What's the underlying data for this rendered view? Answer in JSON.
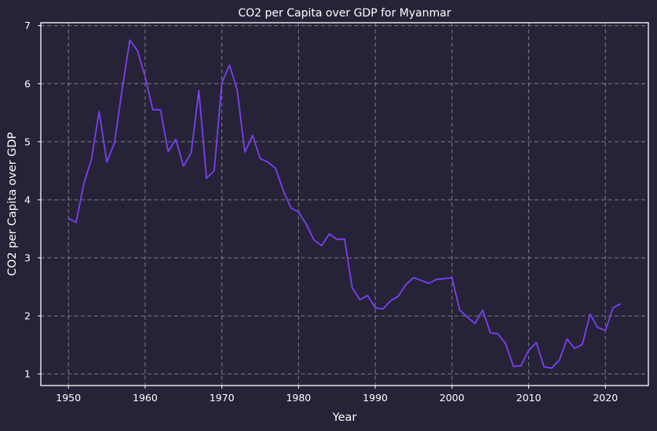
{
  "chart_data": {
    "type": "line",
    "title": "CO2 per Capita over GDP for Myanmar",
    "xlabel": "Year",
    "ylabel": "CO2 per Capita over GDP",
    "xlim": [
      1946.4,
      2025.6
    ],
    "ylim": [
      0.8,
      7.05
    ],
    "xticks": [
      1950,
      1960,
      1970,
      1980,
      1990,
      2000,
      2010,
      2020
    ],
    "yticks": [
      1,
      2,
      3,
      4,
      5,
      6,
      7
    ],
    "grid": true,
    "line_color": "#7b3ff2",
    "background_color": "#262338",
    "series": [
      {
        "x": [
          1950,
          1951,
          1952,
          1953,
          1954,
          1955,
          1956,
          1957,
          1958,
          1959,
          1960,
          1961,
          1962,
          1963,
          1964,
          1965,
          1966,
          1967,
          1968,
          1969,
          1970,
          1971,
          1972,
          1973,
          1974,
          1975,
          1976,
          1977,
          1978,
          1979,
          1980,
          1981,
          1982,
          1983,
          1984,
          1985,
          1986,
          1987,
          1988,
          1989,
          1990,
          1991,
          1992,
          1993,
          1994,
          1995,
          1996,
          1997,
          1998,
          1999,
          2000,
          2001,
          2002,
          2003,
          2004,
          2005,
          2006,
          2007,
          2008,
          2009,
          2010,
          2011,
          2012,
          2013,
          2014,
          2015,
          2016,
          2017,
          2018,
          2019,
          2020,
          2021,
          2022
        ],
        "values": [
          3.68,
          3.61,
          4.27,
          4.7,
          5.52,
          4.65,
          4.98,
          5.9,
          6.75,
          6.57,
          6.12,
          5.55,
          5.55,
          4.83,
          5.04,
          4.58,
          4.81,
          5.88,
          4.37,
          4.5,
          6.02,
          6.32,
          5.89,
          4.82,
          5.11,
          4.71,
          4.65,
          4.54,
          4.16,
          3.86,
          3.79,
          3.58,
          3.31,
          3.21,
          3.41,
          3.32,
          3.32,
          2.48,
          2.28,
          2.35,
          2.14,
          2.12,
          2.26,
          2.34,
          2.54,
          2.66,
          2.61,
          2.56,
          2.63,
          2.64,
          2.66,
          2.1,
          1.98,
          1.87,
          2.1,
          1.71,
          1.69,
          1.52,
          1.13,
          1.14,
          1.41,
          1.54,
          1.12,
          1.1,
          1.24,
          1.6,
          1.44,
          1.51,
          2.03,
          1.8,
          1.75,
          2.14,
          2.21
        ]
      }
    ]
  }
}
